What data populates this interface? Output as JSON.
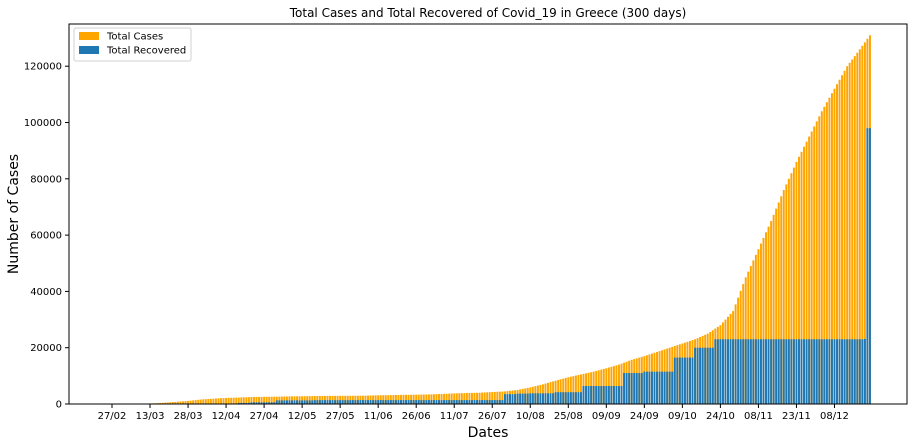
{
  "chart_data": {
    "type": "bar",
    "stacking": "overlay",
    "title": "Total Cases and Total Recovered of Covid_19 in Greece (300 days)",
    "xlabel": "Dates",
    "ylabel": "Number of Cases",
    "ylim": [
      0,
      135000
    ],
    "yticks": [
      0,
      20000,
      40000,
      60000,
      80000,
      100000,
      120000
    ],
    "xticks": [
      "27/02",
      "13/03",
      "28/03",
      "12/04",
      "27/04",
      "12/05",
      "27/05",
      "11/06",
      "26/06",
      "11/07",
      "26/07",
      "10/08",
      "25/08",
      "09/09",
      "24/09",
      "09/10",
      "24/10",
      "08/11",
      "23/11",
      "08/12"
    ],
    "xtick_day_offsets": [
      0,
      15,
      30,
      45,
      60,
      75,
      90,
      105,
      120,
      135,
      150,
      165,
      180,
      195,
      210,
      225,
      240,
      255,
      270,
      285
    ],
    "days": 300,
    "grid": false,
    "legend_position": "upper-left",
    "colors": {
      "total_cases": "#FFA500",
      "total_recovered": "#1F77B4"
    },
    "series": [
      {
        "name": "Total Cases",
        "anchors": [
          [
            0,
            0
          ],
          [
            8,
            0
          ],
          [
            15,
            190
          ],
          [
            20,
            420
          ],
          [
            25,
            740
          ],
          [
            30,
            1100
          ],
          [
            35,
            1600
          ],
          [
            40,
            1900
          ],
          [
            45,
            2150
          ],
          [
            50,
            2300
          ],
          [
            55,
            2470
          ],
          [
            60,
            2550
          ],
          [
            65,
            2600
          ],
          [
            70,
            2700
          ],
          [
            75,
            2750
          ],
          [
            80,
            2830
          ],
          [
            85,
            2880
          ],
          [
            90,
            2900
          ],
          [
            95,
            2920
          ],
          [
            100,
            2960
          ],
          [
            105,
            3090
          ],
          [
            110,
            3150
          ],
          [
            115,
            3250
          ],
          [
            120,
            3310
          ],
          [
            125,
            3400
          ],
          [
            130,
            3560
          ],
          [
            135,
            3770
          ],
          [
            140,
            3900
          ],
          [
            145,
            4000
          ],
          [
            150,
            4250
          ],
          [
            155,
            4480
          ],
          [
            160,
            5000
          ],
          [
            165,
            5900
          ],
          [
            170,
            7000
          ],
          [
            175,
            8300
          ],
          [
            180,
            9500
          ],
          [
            185,
            10500
          ],
          [
            190,
            11500
          ],
          [
            195,
            12700
          ],
          [
            200,
            14000
          ],
          [
            205,
            15700
          ],
          [
            210,
            17000
          ],
          [
            215,
            18500
          ],
          [
            220,
            20000
          ],
          [
            225,
            21500
          ],
          [
            230,
            23000
          ],
          [
            235,
            25000
          ],
          [
            240,
            28000
          ],
          [
            245,
            33000
          ],
          [
            250,
            45000
          ],
          [
            255,
            55000
          ],
          [
            260,
            65000
          ],
          [
            265,
            76000
          ],
          [
            270,
            86000
          ],
          [
            275,
            95000
          ],
          [
            280,
            104000
          ],
          [
            285,
            112000
          ],
          [
            290,
            120000
          ],
          [
            295,
            126000
          ],
          [
            299,
            131000
          ]
        ]
      },
      {
        "name": "Total Recovered",
        "steps": [
          [
            0,
            0
          ],
          [
            43,
            0
          ],
          [
            50,
            400
          ],
          [
            55,
            600
          ],
          [
            65,
            1300
          ],
          [
            80,
            1380
          ],
          [
            95,
            1400
          ],
          [
            150,
            1400
          ],
          [
            155,
            3500
          ],
          [
            160,
            3700
          ],
          [
            165,
            3800
          ],
          [
            175,
            4200
          ],
          [
            186,
            6400
          ],
          [
            202,
            11000
          ],
          [
            210,
            11500
          ],
          [
            222,
            16500
          ],
          [
            230,
            20000
          ],
          [
            238,
            23000
          ],
          [
            297,
            23100
          ],
          [
            298,
            98000
          ],
          [
            299,
            98000
          ]
        ]
      }
    ]
  }
}
